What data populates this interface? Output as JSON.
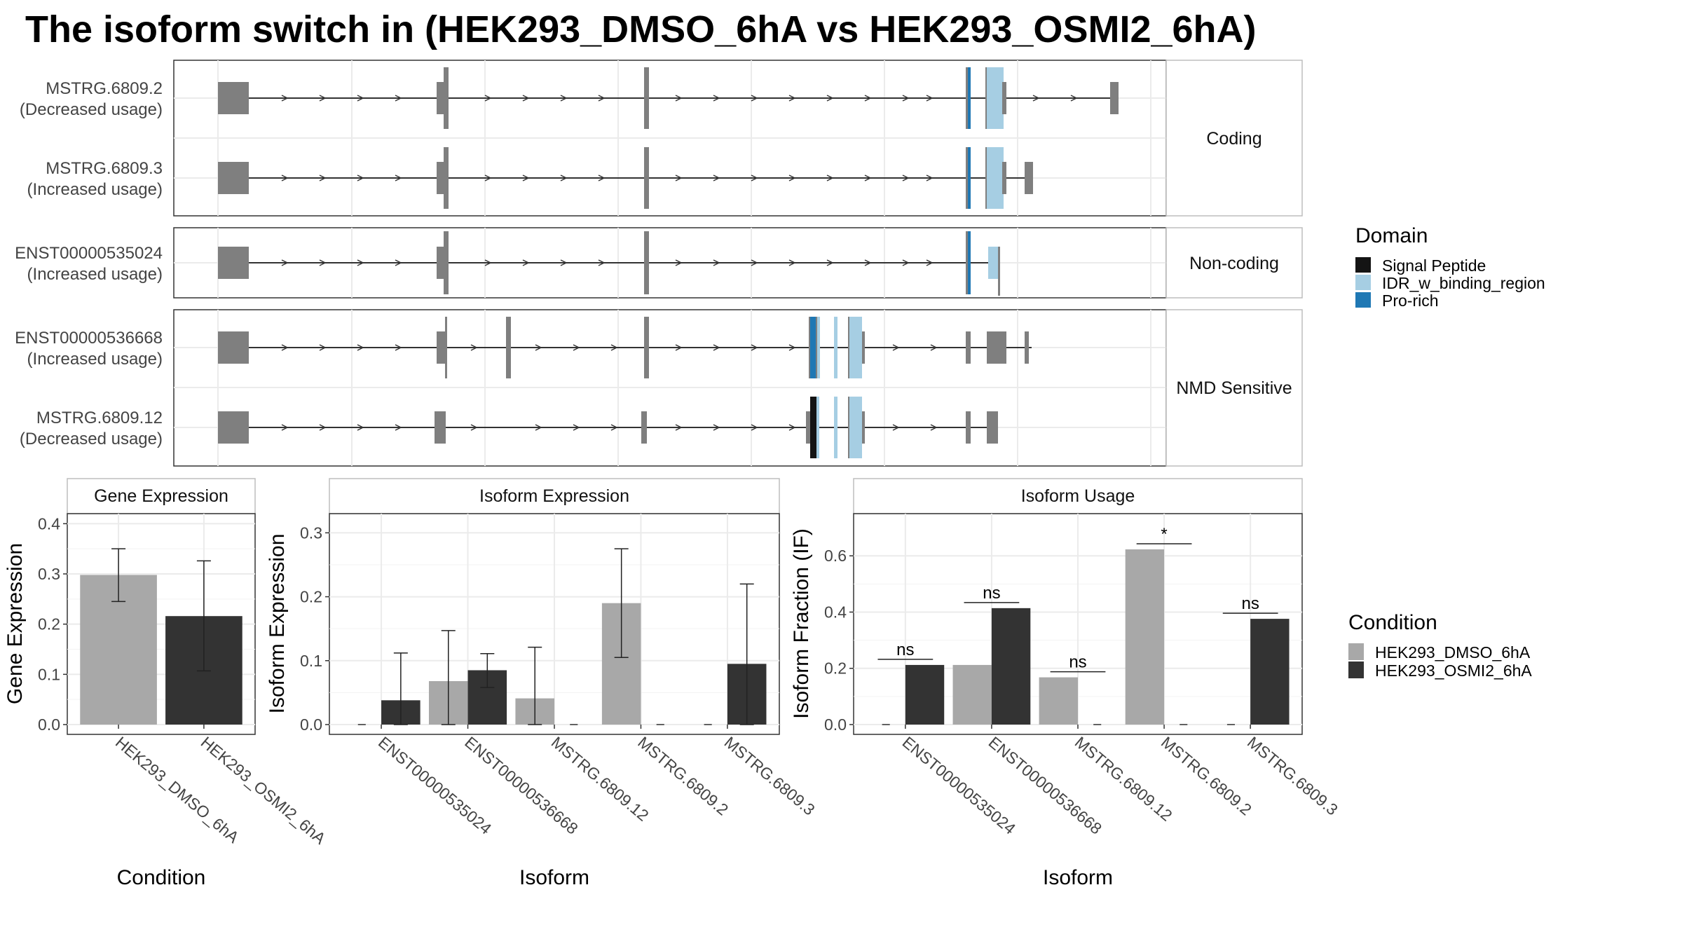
{
  "title": "The isoform switch in  (HEK293_DMSO_6hA vs HEK293_OSMI2_6hA)",
  "colors": {
    "exon": "#7f7f7f",
    "signal_peptide": "#141414",
    "idr": "#a6cee3",
    "pro_rich": "#1f78b4",
    "dmso": "#a8a8a8",
    "osmi2": "#333333"
  },
  "structure_panels": [
    {
      "label": "Coding",
      "transcripts": [
        {
          "id": "MSTRG.6809.2",
          "usage": "(Decreased usage)"
        },
        {
          "id": "MSTRG.6809.3",
          "usage": "(Increased usage)"
        }
      ]
    },
    {
      "label": "Non-coding",
      "transcripts": [
        {
          "id": "ENST00000535024",
          "usage": "(Increased usage)"
        }
      ]
    },
    {
      "label": "NMD Sensitive",
      "transcripts": [
        {
          "id": "ENST00000536668",
          "usage": "(Increased usage)"
        },
        {
          "id": "MSTRG.6809.12",
          "usage": "(Decreased usage)"
        }
      ]
    }
  ],
  "domain_legend": {
    "title": "Domain",
    "items": [
      {
        "label": "Signal Peptide",
        "color": "#141414"
      },
      {
        "label": "IDR_w_binding_region",
        "color": "#a6cee3"
      },
      {
        "label": "Pro-rich",
        "color": "#1f78b4"
      }
    ]
  },
  "condition_legend": {
    "title": "Condition",
    "items": [
      {
        "label": "HEK293_DMSO_6hA",
        "color": "#a8a8a8"
      },
      {
        "label": "HEK293_OSMI2_6hA",
        "color": "#333333"
      }
    ]
  },
  "chart_data": [
    {
      "type": "bar",
      "title": "Gene Expression",
      "xlabel": "Condition",
      "ylabel": "Gene Expression",
      "ylim": [
        0,
        0.42
      ],
      "yticks": [
        "0.0",
        "0.1",
        "0.2",
        "0.3",
        "0.4"
      ],
      "categories": [
        "HEK293_DMSO_6hA",
        "HEK293_OSMI2_6hA"
      ],
      "values": [
        0.298,
        0.216
      ],
      "error_low": [
        0.245,
        0.107
      ],
      "error_high": [
        0.35,
        0.326
      ]
    },
    {
      "type": "bar",
      "title": "Isoform Expression",
      "xlabel": "Isoform",
      "ylabel": "Isoform Expression",
      "ylim": [
        0,
        0.33
      ],
      "yticks": [
        "0.0",
        "0.1",
        "0.2",
        "0.3"
      ],
      "categories": [
        "ENST00000535024",
        "ENST00000536668",
        "MSTRG.6809.12",
        "MSTRG.6809.2",
        "MSTRG.6809.3"
      ],
      "series": [
        {
          "name": "HEK293_DMSO_6hA",
          "values": [
            0.0,
            0.068,
            0.041,
            0.19,
            0.0
          ],
          "error_low": [
            0.0,
            0.0,
            0.0,
            0.105,
            0.0
          ],
          "error_high": [
            0.0,
            0.147,
            0.121,
            0.275,
            0.0
          ]
        },
        {
          "name": "HEK293_OSMI2_6hA",
          "values": [
            0.038,
            0.085,
            0.0,
            0.0,
            0.095
          ],
          "error_low": [
            0.0,
            0.058,
            0.0,
            0.0,
            0.0
          ],
          "error_high": [
            0.112,
            0.111,
            0.0,
            0.0,
            0.22
          ]
        }
      ]
    },
    {
      "type": "bar",
      "title": "Isoform Usage",
      "xlabel": "Isoform",
      "ylabel": "Isoform Fraction (IF)",
      "ylim": [
        0,
        0.75
      ],
      "yticks": [
        "0.0",
        "0.2",
        "0.4",
        "0.6"
      ],
      "categories": [
        "ENST00000535024",
        "ENST00000536668",
        "MSTRG.6809.12",
        "MSTRG.6809.2",
        "MSTRG.6809.3"
      ],
      "series": [
        {
          "name": "HEK293_DMSO_6hA",
          "values": [
            0.0,
            0.212,
            0.168,
            0.623,
            0.0
          ]
        },
        {
          "name": "HEK293_OSMI2_6hA",
          "values": [
            0.212,
            0.414,
            0.0,
            0.0,
            0.376
          ]
        }
      ],
      "significance": [
        "ns",
        "ns",
        "ns",
        "*",
        "ns"
      ]
    }
  ]
}
